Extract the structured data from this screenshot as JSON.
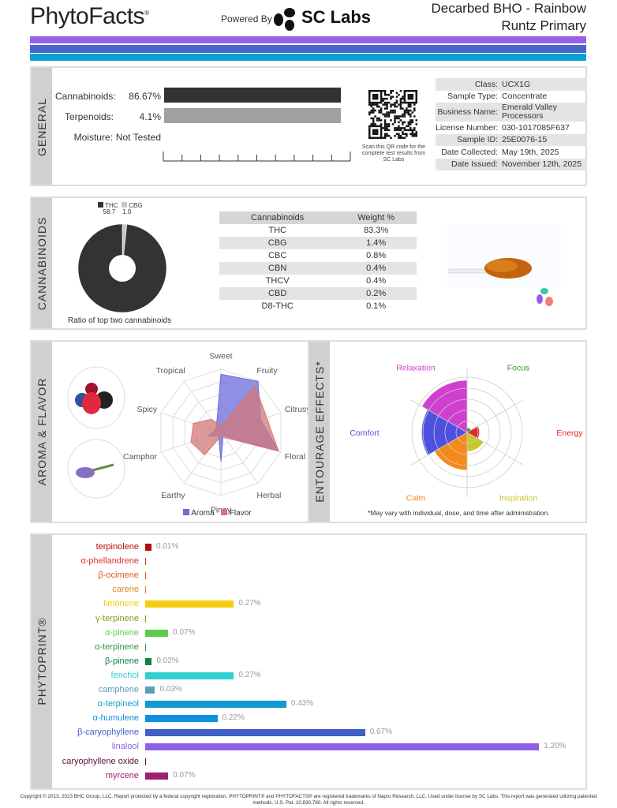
{
  "header": {
    "logo": "PhytoFacts",
    "powered_by": "Powered By",
    "lab": "SC Labs",
    "title_line1": "Decarbed BHO - Rainbow",
    "title_line2": "Runtz Primary"
  },
  "colors": {
    "stripe1": "#9a5fe8",
    "stripe2": "#4766cc",
    "stripe3": "#0ba1d8"
  },
  "general": {
    "section": "GENERAL",
    "bars": [
      {
        "label": "Cannabinoids:",
        "value": "86.67%",
        "pct": 86.67,
        "color": "#333333"
      },
      {
        "label": "Terpenoids:",
        "value": "4.1%",
        "pct": 4.1,
        "color": "#a0a0a0"
      },
      {
        "label": "Moisture:",
        "value": "Not Tested"
      }
    ],
    "qr_caption": "Scan this QR code for the complete test results from SC Labs",
    "info": [
      {
        "k": "Class:",
        "v": "UCX1G"
      },
      {
        "k": "Sample Type:",
        "v": "Concentrate"
      },
      {
        "k": "Business Name:",
        "v": "Emerald Valley Processors"
      },
      {
        "k": "License Number:",
        "v": "030-1017085F637"
      },
      {
        "k": "Sample ID:",
        "v": "25E0076-15"
      },
      {
        "k": "Date Collected:",
        "v": "May 19th, 2025"
      },
      {
        "k": "Date Issued:",
        "v": "November 12th, 2025"
      }
    ]
  },
  "cannabinoids": {
    "section": "CANNABINOIDS",
    "legend": [
      {
        "name": "THC",
        "value": "58.7",
        "num": 58.7,
        "color": "#333333"
      },
      {
        "name": "CBG",
        "value": "1.0",
        "num": 1.0,
        "color": "#c8c8c8"
      }
    ],
    "donut_caption": "Ratio of top two cannabinoids",
    "table_headers": [
      "Cannabinoids",
      "Weight %"
    ],
    "rows": [
      [
        "THC",
        "83.3%"
      ],
      [
        "CBG",
        "1.4%"
      ],
      [
        "CBC",
        "0.8%"
      ],
      [
        "CBN",
        "0.4%"
      ],
      [
        "THCV",
        "0.4%"
      ],
      [
        "CBD",
        "0.2%"
      ],
      [
        "D8-THC",
        "0.1%"
      ]
    ]
  },
  "aroma": {
    "section": "AROMA & FLAVOR",
    "axes": [
      "Sweet",
      "Fruity",
      "Citrusy",
      "Floral",
      "Herbal",
      "Piney",
      "Earthy",
      "Camphor",
      "Spicy",
      "Tropical"
    ],
    "max": 5,
    "series": [
      {
        "name": "Aroma",
        "color": "#6b6bdc",
        "values": [
          4.6,
          5,
          3.3,
          4.8,
          0.3,
          2.3,
          0.3,
          1.0,
          0.5,
          0.6
        ]
      },
      {
        "name": "Flavor",
        "color": "#d27878",
        "values": [
          0.5,
          4.6,
          3.8,
          4.8,
          0.5,
          0.3,
          2.2,
          2.5,
          2.3,
          1.3
        ]
      }
    ]
  },
  "entourage": {
    "section": "ENTOURAGE EFFECTS*",
    "max": 5,
    "effects": [
      {
        "name": "Focus",
        "value": 0.4,
        "color": "#2a9a2a"
      },
      {
        "name": "Energy",
        "value": 1.1,
        "color": "#e02a2a"
      },
      {
        "name": "Inspiration",
        "value": 1.7,
        "color": "#c8c82a"
      },
      {
        "name": "Calm",
        "value": 3.4,
        "color": "#f58a1a"
      },
      {
        "name": "Comfort",
        "value": 4.1,
        "color": "#5050e0"
      },
      {
        "name": "Relaxation",
        "value": 4.7,
        "color": "#d040d0"
      }
    ],
    "note": "*May vary with individual, dose, and time after administration."
  },
  "phytoprint": {
    "section": "PHYTOPRINT®",
    "terpenes": [
      {
        "name": "terpinolene",
        "value": "0.01%",
        "pct": 0.01,
        "color": "#b01010"
      },
      {
        "name": "α-phellandrene",
        "value": "",
        "pct": 0,
        "color": "#e03030"
      },
      {
        "name": "β-ocimene",
        "value": "",
        "pct": 0,
        "color": "#e05a20"
      },
      {
        "name": "carene",
        "value": "",
        "pct": 0,
        "color": "#e08a20"
      },
      {
        "name": "limonene",
        "value": "0.27%",
        "pct": 0.27,
        "color": "#f5cc10"
      },
      {
        "name": "γ-terpinene",
        "value": "",
        "pct": 0,
        "color": "#8a9a20"
      },
      {
        "name": "α-pinene",
        "value": "0.07%",
        "pct": 0.07,
        "color": "#5ccc4a"
      },
      {
        "name": "α-terpinene",
        "value": "",
        "pct": 0,
        "color": "#2a9a3a"
      },
      {
        "name": "β-pinene",
        "value": "0.02%",
        "pct": 0.02,
        "color": "#108040"
      },
      {
        "name": "fenchol",
        "value": "0.27%",
        "pct": 0.27,
        "color": "#30d0d0"
      },
      {
        "name": "camphene",
        "value": "0.03%",
        "pct": 0.03,
        "color": "#5aa0b8"
      },
      {
        "name": "α-terpineol",
        "value": "0.43%",
        "pct": 0.43,
        "color": "#109ad0"
      },
      {
        "name": "α-humulene",
        "value": "0.22%",
        "pct": 0.22,
        "color": "#1090e0"
      },
      {
        "name": "β-caryophyllene",
        "value": "0.67%",
        "pct": 0.67,
        "color": "#4060c8"
      },
      {
        "name": "linalool",
        "value": "1.20%",
        "pct": 1.2,
        "color": "#9060e8"
      },
      {
        "name": "caryophyllene oxide",
        "value": "",
        "pct": 0,
        "color": "#601040"
      },
      {
        "name": "myrcene",
        "value": "0.07%",
        "pct": 0.07,
        "color": "#a02070"
      }
    ]
  },
  "footer": "Copyright © 2013, 2023 BHC Group, LLC. Report protected by a federal copyright registration. PHYTOPRINT® and PHYTOFACTS® are registered trademarks of Napro Research, LLC. Used under license by SC Labs. This report was generated utilizing patented methods. U.S. Pat. 10,830,780. All rights reserved."
}
